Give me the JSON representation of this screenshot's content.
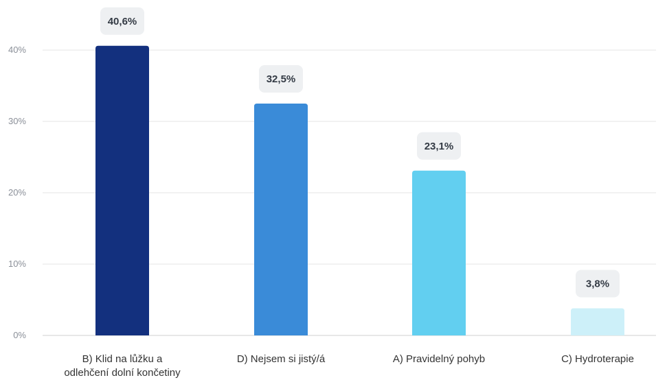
{
  "chart_data": {
    "type": "bar",
    "categories": [
      [
        "B) Klid na lůžku a",
        "odlehčení dolní končetiny"
      ],
      [
        "D) Nejsem si jistý/á"
      ],
      [
        "A) Pravidelný pohyb"
      ],
      [
        "C) Hydroterapie"
      ]
    ],
    "values": [
      40.6,
      32.5,
      23.1,
      3.8
    ],
    "data_labels": [
      "40,6%",
      "32,5%",
      "23,1%",
      "3,8%"
    ],
    "colors": [
      "#13307e",
      "#3a8bd8",
      "#62cff0",
      "#cdf0f9"
    ],
    "y_ticks": [
      0,
      10,
      20,
      30,
      40
    ],
    "y_tick_labels": [
      "0%",
      "10%",
      "20%",
      "30%",
      "40%"
    ],
    "ylim": [
      0,
      40
    ],
    "grid": true,
    "legend": "none"
  }
}
